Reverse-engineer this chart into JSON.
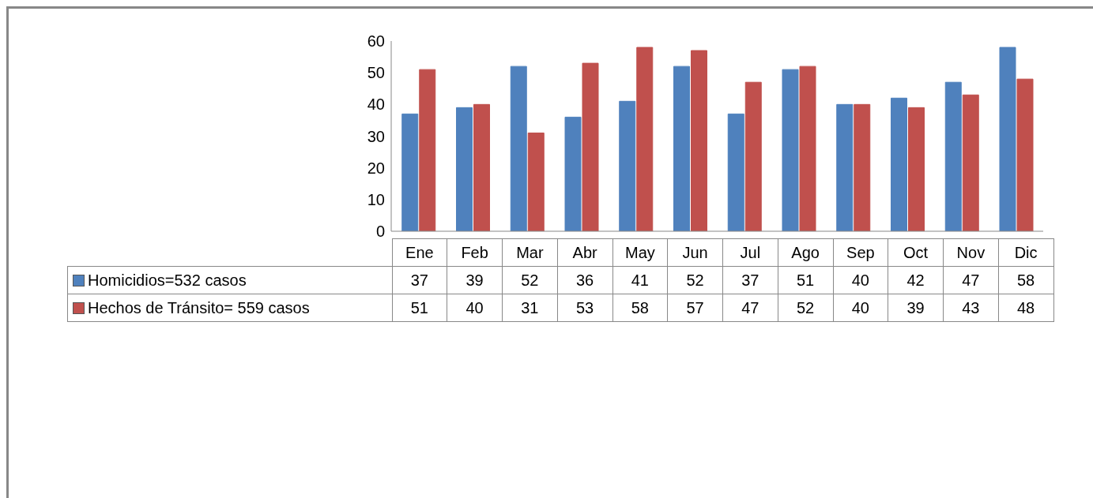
{
  "chart_data": {
    "type": "bar",
    "categories": [
      "Ene",
      "Feb",
      "Mar",
      "Abr",
      "May",
      "Jun",
      "Jul",
      "Ago",
      "Sep",
      "Oct",
      "Nov",
      "Dic"
    ],
    "series": [
      {
        "name": "Homicidios=532 casos",
        "color": "#4f81bd",
        "values": [
          37,
          39,
          52,
          36,
          41,
          52,
          37,
          51,
          40,
          42,
          47,
          58
        ]
      },
      {
        "name": "Hechos de Tránsito= 559 casos",
        "color": "#c0504d",
        "values": [
          51,
          40,
          31,
          53,
          58,
          57,
          47,
          52,
          40,
          39,
          43,
          48
        ]
      }
    ],
    "ylim": [
      0,
      60
    ],
    "yticks": [
      0,
      10,
      20,
      30,
      40,
      50,
      60
    ],
    "data_labels": true,
    "legend": "bottom"
  }
}
